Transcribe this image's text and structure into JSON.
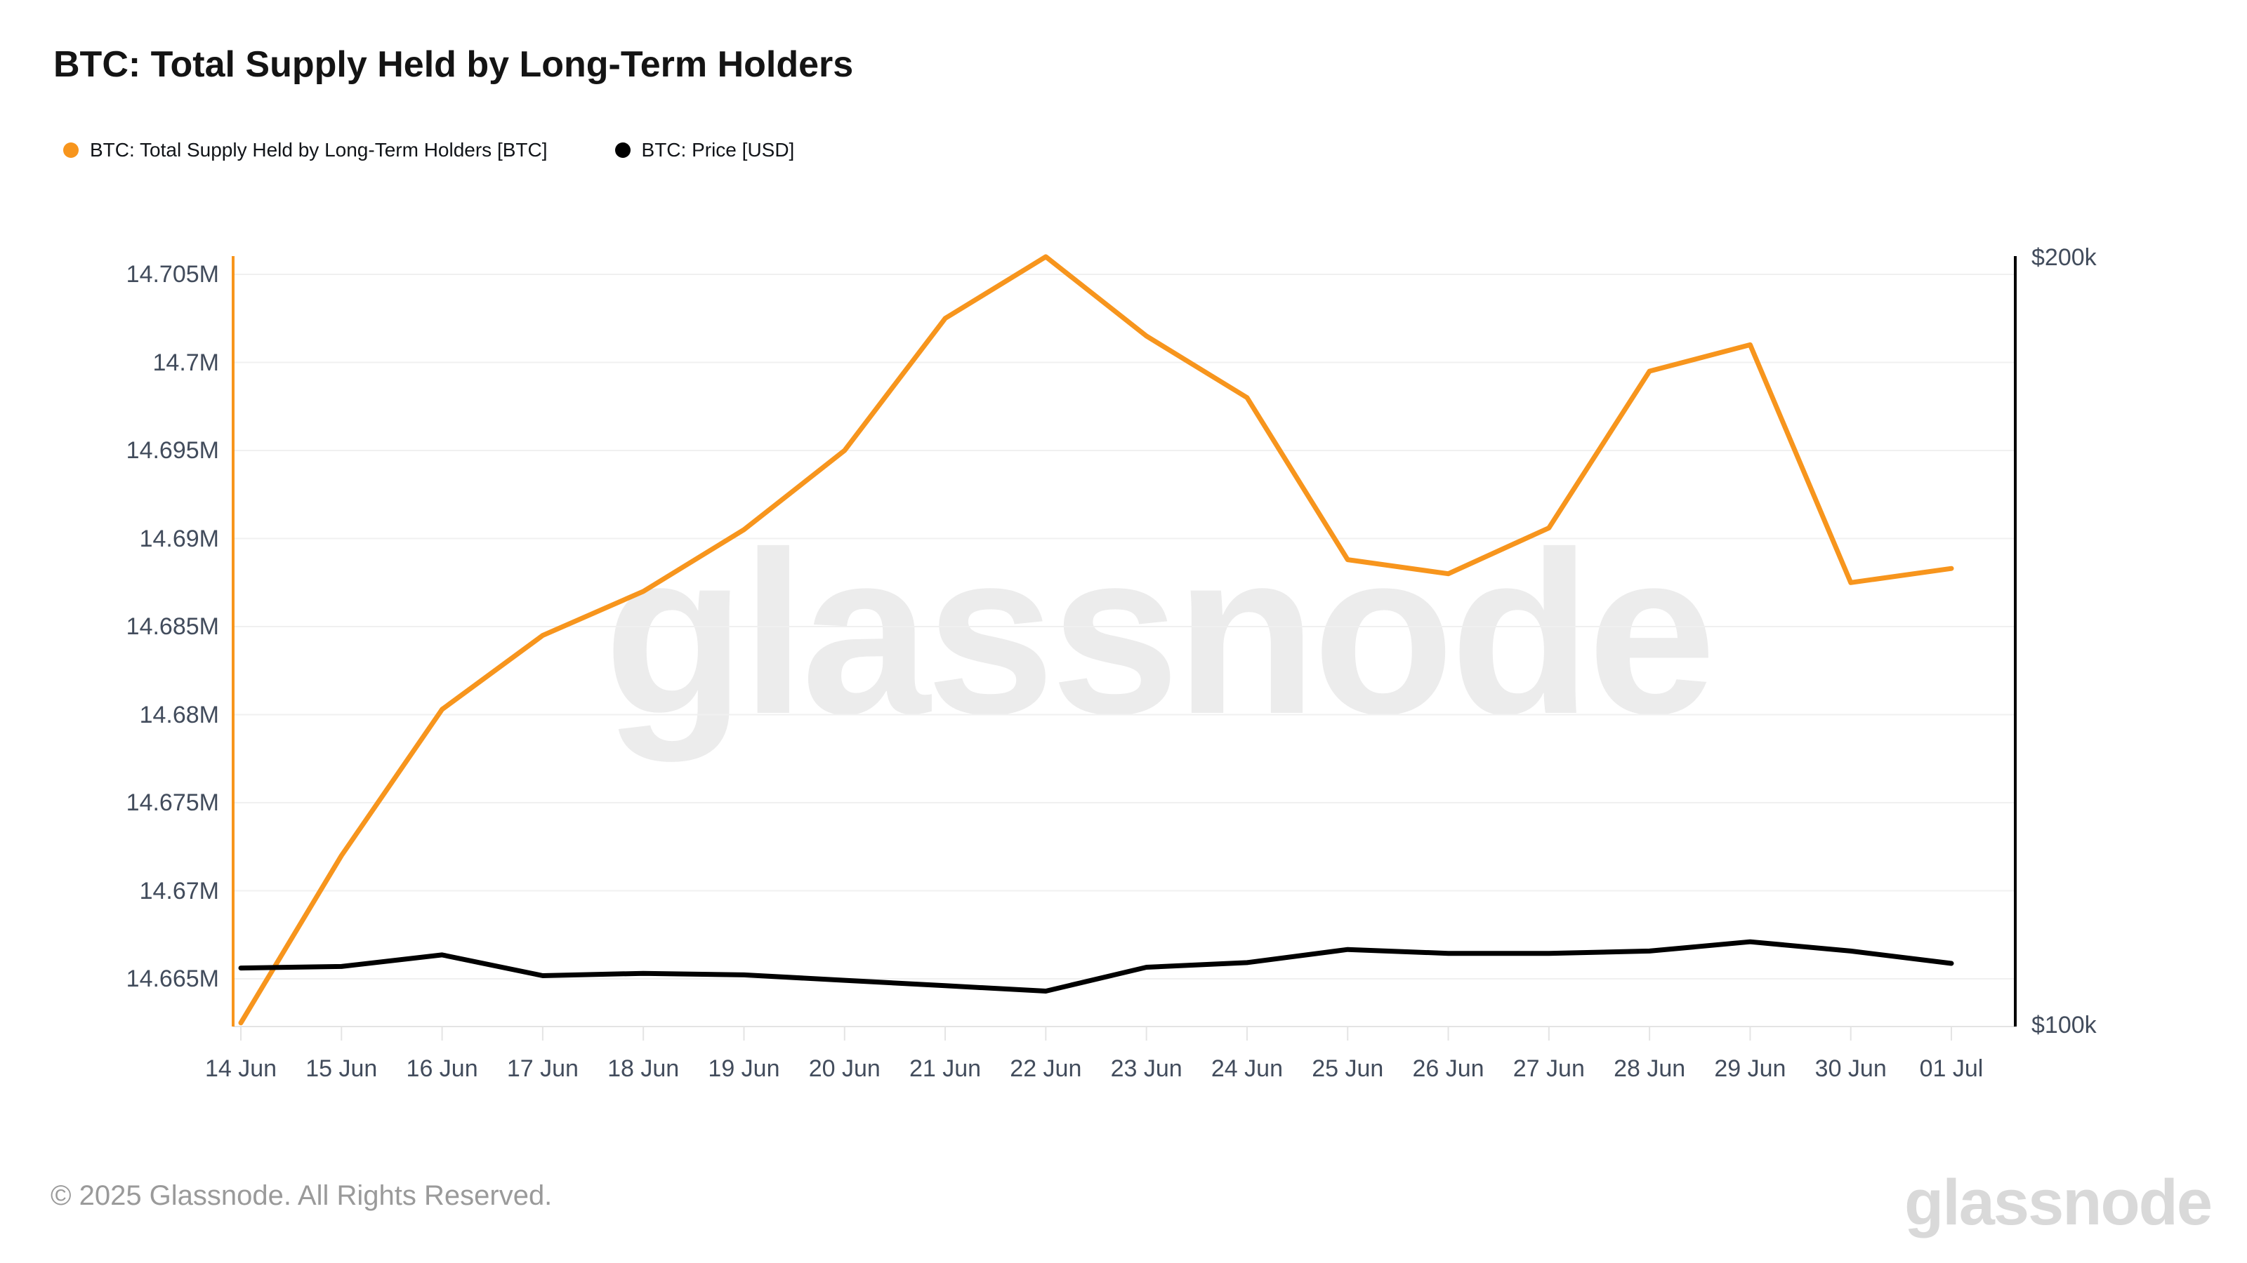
{
  "header": {
    "title": "BTC: Total Supply Held by Long-Term Holders"
  },
  "legend": [
    {
      "label": "BTC: Total Supply Held by Long-Term Holders [BTC]",
      "color": "#f7951d"
    },
    {
      "label": "BTC: Price [USD]",
      "color": "#000000"
    }
  ],
  "footer": {
    "copyright": "© 2025 Glassnode. All Rights Reserved."
  },
  "branding": {
    "watermark": "glassnode",
    "logo": "glassnode"
  },
  "colors": {
    "supply_line": "#f7951d",
    "price_line": "#000000",
    "gridline": "#f0f0f0",
    "bottom_axis": "#e4e4e4",
    "tick_text": "#424c5c",
    "left_axis_line": "#f7951d",
    "right_axis_line": "#000000"
  },
  "chart_data": {
    "type": "line",
    "title": "BTC: Total Supply Held by Long-Term Holders",
    "x": [
      "14 Jun",
      "15 Jun",
      "16 Jun",
      "17 Jun",
      "18 Jun",
      "19 Jun",
      "20 Jun",
      "21 Jun",
      "22 Jun",
      "23 Jun",
      "24 Jun",
      "25 Jun",
      "26 Jun",
      "27 Jun",
      "28 Jun",
      "29 Jun",
      "30 Jun",
      "01 Jul"
    ],
    "series": [
      {
        "name": "BTC: Total Supply Held by Long-Term Holders [BTC]",
        "axis": "left",
        "unit": "M BTC",
        "color": "#f7951d",
        "values": [
          14.6625,
          14.672,
          14.6803,
          14.6845,
          14.687,
          14.6905,
          14.695,
          14.7025,
          14.706,
          14.7015,
          14.698,
          14.6888,
          14.688,
          14.6906,
          14.6995,
          14.701,
          14.6875,
          14.6883
        ]
      },
      {
        "name": "BTC: Price [USD]",
        "axis": "right",
        "unit": "USD",
        "color": "#000000",
        "values": [
          107600,
          107800,
          109300,
          106600,
          106900,
          106700,
          106000,
          105300,
          104600,
          107700,
          108300,
          110000,
          109500,
          109500,
          109800,
          111000,
          109800,
          108200
        ]
      }
    ],
    "left_axis": {
      "tick_labels": [
        "14.705M",
        "14.7M",
        "14.695M",
        "14.69M",
        "14.685M",
        "14.68M",
        "14.675M",
        "14.67M",
        "14.665M"
      ],
      "tick_values": [
        14.705,
        14.7,
        14.695,
        14.69,
        14.685,
        14.68,
        14.675,
        14.67,
        14.665
      ],
      "unit": "M BTC"
    },
    "right_axis": {
      "top_label": "$200k",
      "bottom_label": "$100k",
      "range": [
        100000,
        200000
      ]
    },
    "grid": "horizontal",
    "legend_position": "top-left"
  }
}
